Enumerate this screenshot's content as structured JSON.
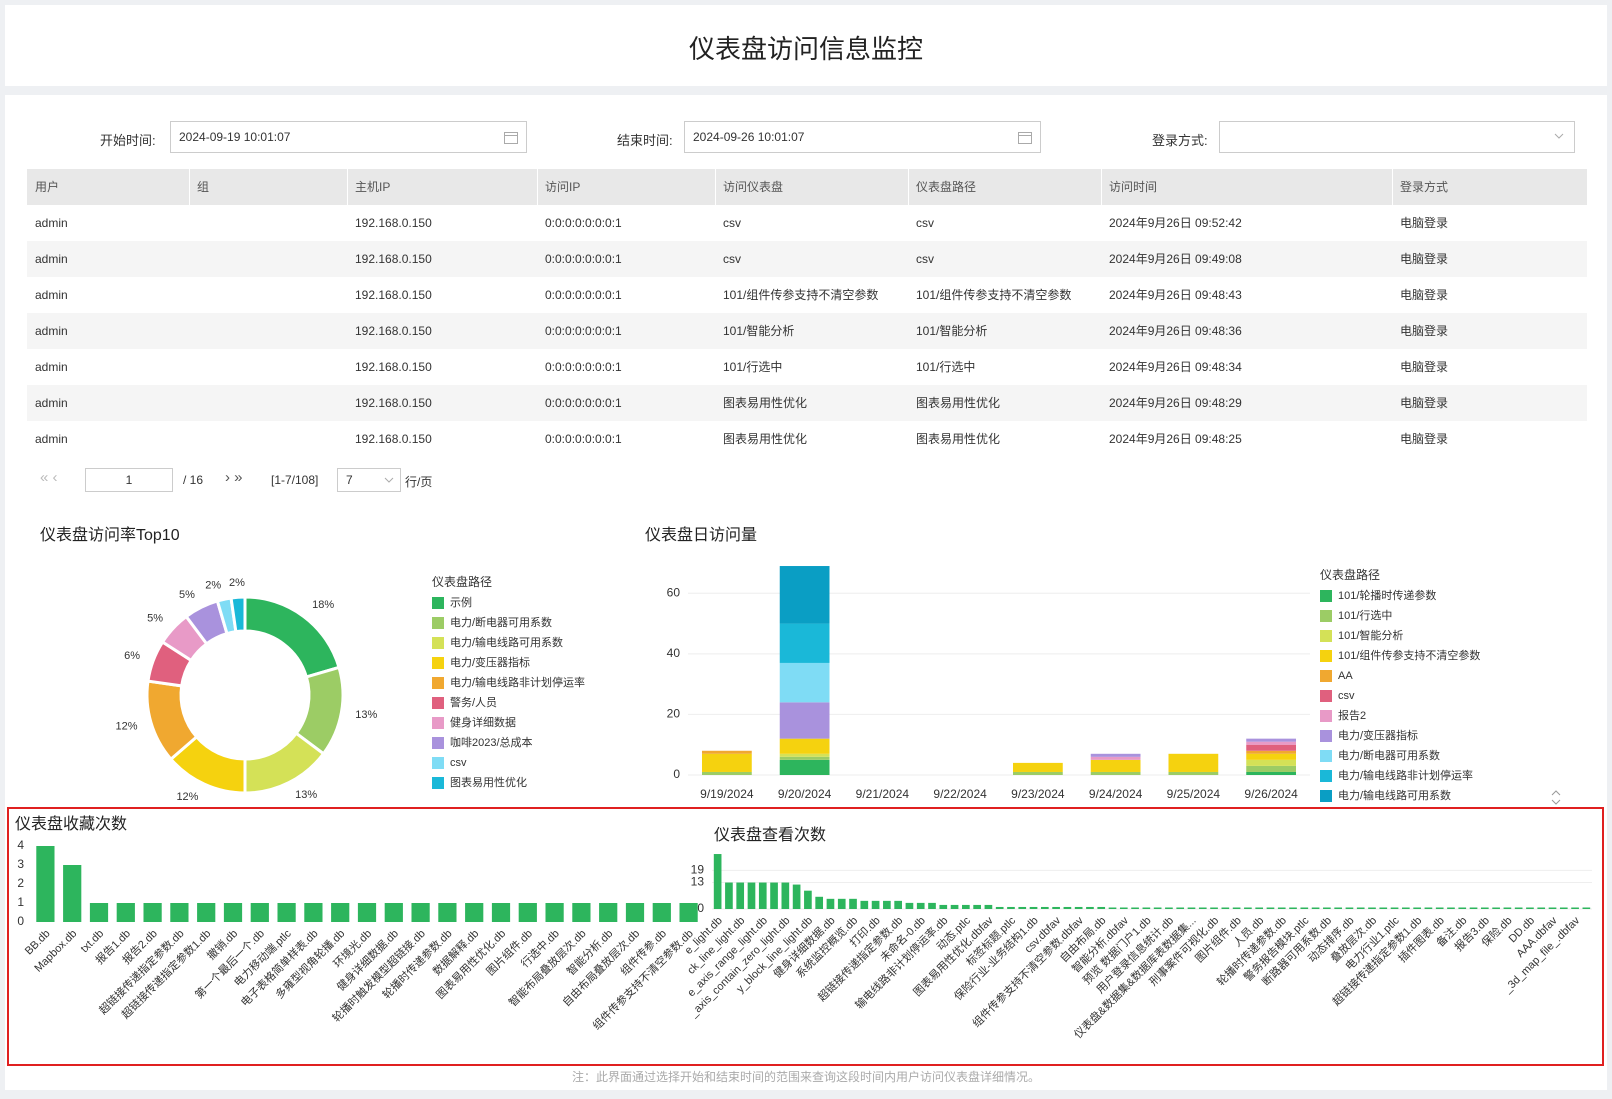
{
  "header": {
    "title": "仪表盘访问信息监控"
  },
  "filters": {
    "start_label": "开始时间:",
    "start_value": "2024-09-19 10:01:07",
    "end_label": "结束时间:",
    "end_value": "2024-09-26 10:01:07",
    "login_label": "登录方式:"
  },
  "table": {
    "columns": [
      "用户",
      "组",
      "主机IP",
      "访问IP",
      "访问仪表盘",
      "仪表盘路径",
      "访问时间",
      "登录方式"
    ],
    "rows": [
      [
        "admin",
        null,
        "192.168.0.150",
        "0:0:0:0:0:0:0:1",
        "csv",
        "csv",
        "2024年9月26日 09:52:42",
        "电脑登录"
      ],
      [
        "admin",
        null,
        "192.168.0.150",
        "0:0:0:0:0:0:0:1",
        "csv",
        "csv",
        "2024年9月26日 09:49:08",
        "电脑登录"
      ],
      [
        "admin",
        null,
        "192.168.0.150",
        "0:0:0:0:0:0:0:1",
        "101/组件传参支持不清空参数",
        "101/组件传参支持不清空参数",
        "2024年9月26日 09:48:43",
        "电脑登录"
      ],
      [
        "admin",
        null,
        "192.168.0.150",
        "0:0:0:0:0:0:0:1",
        "101/智能分析",
        "101/智能分析",
        "2024年9月26日 09:48:36",
        "电脑登录"
      ],
      [
        "admin",
        null,
        "192.168.0.150",
        "0:0:0:0:0:0:0:1",
        "101/行选中",
        "101/行选中",
        "2024年9月26日 09:48:34",
        "电脑登录"
      ],
      [
        "admin",
        null,
        "192.168.0.150",
        "0:0:0:0:0:0:0:1",
        "图表易用性优化",
        "图表易用性优化",
        "2024年9月26日 09:48:29",
        "电脑登录"
      ],
      [
        "admin",
        null,
        "192.168.0.150",
        "0:0:0:0:0:0:0:1",
        "图表易用性优化",
        "图表易用性优化",
        "2024年9月26日 09:48:25",
        "电脑登录"
      ]
    ]
  },
  "pagination": {
    "page": 1,
    "total": "/ 16",
    "range": "[1-7/108]",
    "page_size": 7,
    "unit": "行/页"
  },
  "note": "注：此界面通过选择开始和结束时间的范围来查询这段时间内用户访问仪表盘详细情况。",
  "chart_data": [
    {
      "type": "donut",
      "title": "仪表盘访问率Top10",
      "legend_title": "仪表盘路径",
      "categories": [
        "示例",
        "电力/断电器可用系数",
        "电力/输电线路可用系数",
        "电力/变压器指标",
        "电力/输电线路非计划停运率",
        "警务/人员",
        "健身详细数据",
        "咖啡2023/总成本",
        "csv",
        "图表易用性优化"
      ],
      "values": [
        18,
        13,
        13,
        12,
        12,
        6,
        5,
        5,
        2,
        2
      ],
      "value_labels": [
        "18%",
        "13%",
        "13%",
        "12%",
        "12%",
        "6%",
        "5%",
        "5%",
        "2%",
        "2%"
      ],
      "colors": [
        "#2db55d",
        "#9ccc65",
        "#d4e157",
        "#f5d20f",
        "#f0a830",
        "#e0607e",
        "#e89ac7",
        "#a992dd",
        "#7fdcf5",
        "#1ab8d8"
      ]
    },
    {
      "type": "stacked_bar",
      "title": "仪表盘日访问量",
      "legend_title": "仪表盘路径",
      "categories": [
        "9/19/2024",
        "9/20/2024",
        "9/21/2024",
        "9/22/2024",
        "9/23/2024",
        "9/24/2024",
        "9/25/2024",
        "9/26/2024"
      ],
      "series": [
        {
          "name": "101/轮播时传递参数",
          "color": "#2db55d",
          "values": [
            0,
            5,
            0,
            0,
            0,
            0,
            0,
            1
          ]
        },
        {
          "name": "101/行选中",
          "color": "#9ccc65",
          "values": [
            1,
            1,
            0,
            0,
            1,
            1,
            1,
            2
          ]
        },
        {
          "name": "101/智能分析",
          "color": "#d4e157",
          "values": [
            0,
            1,
            0,
            0,
            0,
            0,
            0,
            2
          ]
        },
        {
          "name": "101/组件传参支持不清空参数",
          "color": "#f5d20f",
          "values": [
            6,
            5,
            0,
            0,
            3,
            4,
            6,
            2
          ]
        },
        {
          "name": "AA",
          "color": "#f0a830",
          "values": [
            1,
            0,
            0,
            0,
            0,
            0,
            0,
            1
          ]
        },
        {
          "name": "csv",
          "color": "#e0607e",
          "values": [
            0,
            0,
            0,
            0,
            0,
            0,
            0,
            2
          ]
        },
        {
          "name": "报告2",
          "color": "#e89ac7",
          "values": [
            0,
            0,
            0,
            0,
            0,
            1,
            0,
            1
          ]
        },
        {
          "name": "电力/变压器指标",
          "color": "#a992dd",
          "values": [
            0,
            12,
            0,
            0,
            0,
            1,
            0,
            1
          ]
        },
        {
          "name": "电力/断电器可用系数",
          "color": "#7fdcf5",
          "values": [
            0,
            13,
            0,
            0,
            0,
            0,
            0,
            0
          ]
        },
        {
          "name": "电力/输电线路非计划停运率",
          "color": "#1ab8d8",
          "values": [
            0,
            13,
            0,
            0,
            0,
            0,
            0,
            0
          ]
        },
        {
          "name": "电力/输电线路可用系数",
          "color": "#0a9ec4",
          "values": [
            0,
            19,
            0,
            0,
            0,
            0,
            0,
            0
          ]
        }
      ],
      "ylim": [
        0,
        70
      ],
      "yticks": [
        0,
        20,
        40,
        60
      ]
    },
    {
      "type": "bar",
      "title": "仪表盘收藏次数",
      "color": "#2db55d",
      "categories": [
        "BB.db",
        "Mapbox.db",
        "txt.db",
        "报告1.db",
        "报告2.db",
        "超链接传递指定参数.db",
        "超链接传递指定参数1.db",
        "撤销.db",
        "第一个最后一个.db",
        "电力移动端.ptlc",
        "电子表格简单样表.db",
        "多雍型视角轮播.db",
        "环境光.db",
        "健身详细数据.db",
        "轮播时触发模型超链接.db",
        "轮播时传递参数.db",
        "数据解释.db",
        "图表易用性优化.db",
        "图片组件.db",
        "行选中.db",
        "智能布局叠放层次.db",
        "智能分析.db",
        "自由布局叠放层次.db",
        "组件传参.db",
        "组件传参支持不清空参数.db"
      ],
      "values": [
        4,
        3,
        1,
        1,
        1,
        1,
        1,
        1,
        1,
        1,
        1,
        1,
        1,
        1,
        1,
        1,
        1,
        1,
        1,
        1,
        1,
        1,
        1,
        1,
        1
      ],
      "ylim": [
        0,
        4
      ],
      "yticks": [
        0,
        1,
        2,
        3,
        4
      ]
    },
    {
      "type": "bar",
      "title": "仪表盘查看次数",
      "color": "#2db55d",
      "grid": true,
      "categories": [
        "e_light.db",
        null,
        "ck_line_light.db",
        null,
        "e_axis_range_light.db",
        null,
        "_axis_contain_zero_light.db",
        null,
        "y_block_line_light.db",
        null,
        "健身详细数据.db",
        null,
        "系统监控概览.db",
        null,
        "打印.db",
        null,
        "超链接传递指定参数.db",
        null,
        "未命名-0.db",
        null,
        "输电线路非计划停运率.db",
        null,
        "动态.ptlc",
        null,
        "图表易用性优化.dbfav",
        null,
        "标签标题.ptlc",
        null,
        "保险行业-业务结构1.db",
        null,
        "csv.dbfav",
        null,
        "组件传参支持不清空参数.dbfav",
        null,
        "自由布局.db",
        null,
        "智能分析.dbfav",
        null,
        "预览 数据门户1.db",
        null,
        "用户登录信息统计.db",
        null,
        "仪表盘&数据集&数据库表数据集...",
        null,
        "刑事案件可视化.db",
        null,
        "图片组件.db",
        null,
        "人员.db",
        null,
        "轮播时传递参数.db",
        null,
        "警务报告模块.ptlc",
        null,
        "断路器可用系数.db",
        null,
        "动态排序.db",
        null,
        "叠放层次.db",
        null,
        "电力行业1.ptlc",
        null,
        "超链接传递指定参数1.db",
        null,
        "插件图表.db",
        null,
        "备注.db",
        null,
        "报告3.db",
        null,
        "保险.db",
        null,
        "DD.db",
        null,
        "AAA.dbfav",
        null,
        "_3d_map_file_.dbfav",
        null
      ],
      "values": [
        27,
        13,
        13,
        13,
        13,
        13,
        13,
        12,
        9,
        6,
        5,
        5,
        5,
        4,
        4,
        4,
        4,
        3,
        3,
        3,
        2,
        2,
        2,
        2,
        2,
        1,
        1,
        1,
        1,
        1,
        1,
        1,
        1,
        1,
        1,
        0,
        0,
        0,
        0,
        0,
        0,
        0,
        0,
        0,
        0,
        0,
        0,
        0,
        0,
        0,
        0,
        0,
        0,
        0,
        0,
        0,
        0,
        0,
        0,
        0,
        0,
        0,
        0,
        0,
        0,
        0,
        0,
        0,
        0,
        0,
        0,
        0,
        0,
        0,
        0,
        0,
        0,
        0
      ],
      "ylim": [
        0,
        28
      ],
      "yticks": [
        0,
        13,
        19
      ]
    }
  ]
}
